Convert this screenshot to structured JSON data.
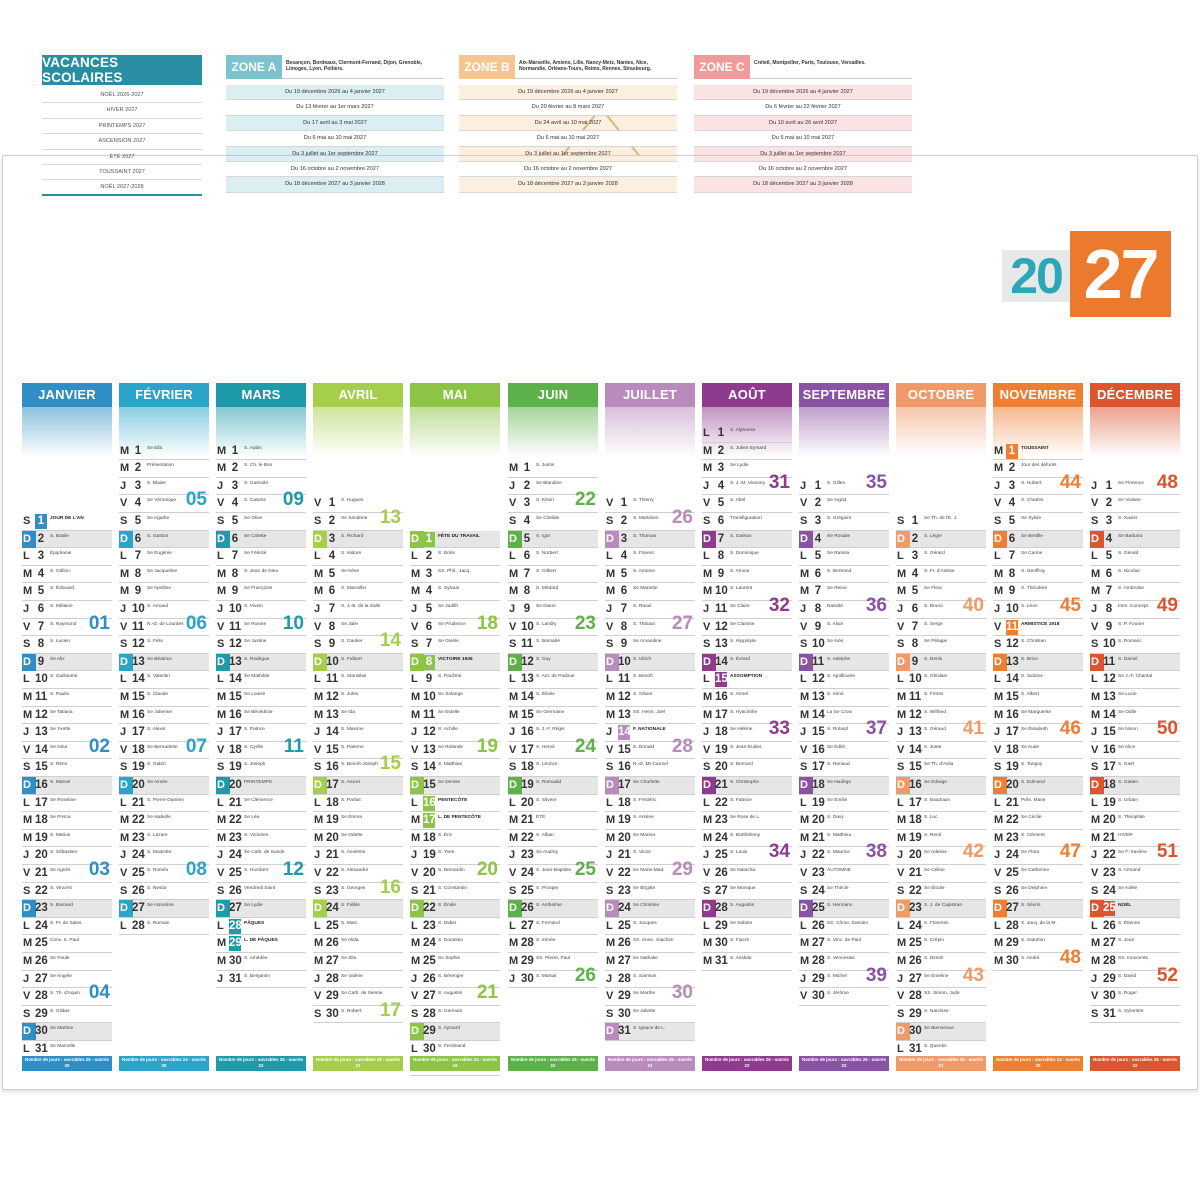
{
  "vacances": {
    "title": "VACANCES SCOLAIRES",
    "periods": [
      "NOËL 2026-2027",
      "HIVER 2027",
      "PRINTEMPS 2027",
      "ASCENSION 2027",
      "ÉTÉ 2027",
      "TOUSSAINT 2027",
      "NOËL 2027-2028"
    ],
    "zones": [
      {
        "name": "ZONE A",
        "color": "#7cc3cf",
        "cities": "Besançon, Bordeaux, Clermont-Ferrand, Dijon, Grenoble, Limoges, Lyon, Poitiers.",
        "rows": [
          "Du 19 décembre 2026 au 4 janvier 2027",
          "Du 13 février au 1er mars 2027",
          "Du 17 avril au 3 mai 2027",
          "Du 6 mai au 10 mai 2027",
          "Du 3 juillet au 1er septembre 2027",
          "Du 16 octobre au 2 novembre 2027",
          "Du 18 décembre 2027 au 3 janvier 2028"
        ]
      },
      {
        "name": "ZONE B",
        "color": "#f7c58f",
        "cities": "Aix-Marseille, Amiens, Lille, Nancy-Metz, Nantes, Nice, Normandie, Orléans-Tours, Reims, Rennes, Strasbourg.",
        "rows": [
          "Du 19 décembre 2026 au 4 janvier 2027",
          "Du 20 février au 8 mars 2027",
          "Du 24 avril au 10 mai 2027",
          "Du 6 mai au 10 mai 2027",
          "Du 3 juillet au 1er septembre 2027",
          "Du 16 octobre au 2 novembre 2027",
          "Du 18 décembre 2027 au 3 janvier 2028"
        ]
      },
      {
        "name": "ZONE C",
        "color": "#f09a9a",
        "cities": "Créteil, Montpellier, Paris, Toulouse, Versailles.",
        "rows": [
          "Du 19 décembre 2026 au 4 janvier 2027",
          "Du 6 février au 22 février 2027",
          "Du 10 avril au 26 avril 2027",
          "Du 6 mai au 10 mai 2027",
          "Du 3 juillet au 1er septembre 2027",
          "Du 16 octobre au 2 novembre 2027",
          "Du 18 décembre 2027 au 3 janvier 2028"
        ]
      }
    ]
  },
  "year": {
    "part1": "20",
    "part2": "27"
  },
  "months": [
    {
      "name": "JANVIER",
      "color": "#2f8fc4",
      "startDay": 5,
      "ndays": 31,
      "footer": "Nombre de jours : ouvrables 25 - ouvrés 20",
      "weeks": [
        [
          "01",
          7
        ],
        [
          "02",
          14
        ],
        [
          "03",
          21
        ],
        [
          "04",
          28
        ]
      ],
      "saints": [
        "JOUR DE L'AN",
        "S. Basile",
        "Épiphanie",
        "S. Odilon",
        "S. Édouard",
        "S. Mélaine",
        "S. Raymond",
        "S. Lucien",
        "Se Alix",
        "S. Guillaume",
        "S. Paulin",
        "Se Tatiana",
        "Se Yvette",
        "Se Nina",
        "S. Rémi",
        "S. Marcel",
        "Se Roseline",
        "Se Prisca",
        "S. Marius",
        "S. Sébastien",
        "Se Agnès",
        "S. Vincent",
        "S. Barnard",
        "S. Fr. de Sales",
        "Conv. S. Paul",
        "Se Paule",
        "Se Angèle",
        "S. Th. d'Aquin",
        "S. Gildas",
        "Se Martine",
        "Se Marcelle"
      ]
    },
    {
      "name": "FÉVRIER",
      "color": "#2aa4c8",
      "startDay": 1,
      "ndays": 28,
      "footer": "Nombre de jours : ouvrables 24 - ouvrés 20",
      "weeks": [
        [
          "05",
          4
        ],
        [
          "06",
          11
        ],
        [
          "07",
          18
        ],
        [
          "08",
          25
        ]
      ],
      "saints": [
        "Se Ella",
        "Présentation",
        "S. Blaise",
        "Se Véronique",
        "Se Agathe",
        "S. Gaston",
        "Se Eugénie",
        "Se Jacqueline",
        "Se Apolline",
        "S. Arnaud",
        "N.-D. de Lourdes",
        "S. Félix",
        "Se Béatrice",
        "S. Valentin",
        "S. Claude",
        "Se Julienne",
        "S. Alexis",
        "Se Bernadette",
        "S. Gabin",
        "Se Aimée",
        "S. Pierre-Damien",
        "Se Isabelle",
        "S. Lazare",
        "S. Modeste",
        "S. Roméo",
        "S. Nestor",
        "Se Honorine",
        "S. Romain"
      ]
    },
    {
      "name": "MARS",
      "color": "#1e9aa8",
      "startDay": 1,
      "ndays": 31,
      "footer": "Nombre de jours : ouvrables 26 - ouvrés 22",
      "weeks": [
        [
          "09",
          4
        ],
        [
          "10",
          11
        ],
        [
          "11",
          18
        ],
        [
          "12",
          25
        ]
      ],
      "saints": [
        "S. Aubin",
        "S. Ch. le Bon",
        "S. Guénolé",
        "S. Casimir",
        "Se Olive",
        "Se Colette",
        "Se Félicité",
        "S. Jean de Dieu",
        "Se Françoise",
        "S. Vivien",
        "Se Rosine",
        "Se Justine",
        "S. Rodrigue",
        "Se Mathilde",
        "Se Louise",
        "Se Bénédicte",
        "S. Patrice",
        "S. Cyrille",
        "S. Joseph",
        "PRINTEMPS",
        "Se Clémence",
        "Se Léa",
        "S. Victorien",
        "Se Cath. de Suède",
        "S. Humbert",
        "Vendredi Saint",
        "Se Lydie",
        "PÂQUES",
        "L. DE PÂQUES",
        "S. Amédée",
        "S. Benjamin"
      ]
    },
    {
      "name": "AVRIL",
      "color": "#a5cf4a",
      "startDay": 4,
      "ndays": 30,
      "footer": "Nombre de jours : ouvrables 25 - ouvrés 21",
      "weeks": [
        [
          "13",
          2
        ],
        [
          "14",
          9
        ],
        [
          "15",
          16
        ],
        [
          "16",
          23
        ],
        [
          "17",
          30
        ]
      ],
      "saints": [
        "S. Hugues",
        "Se Sandrine",
        "S. Richard",
        "S. Isidore",
        "Se Irène",
        "S. Marcellin",
        "S. J.-B. de la Salle",
        "Se Julie",
        "S. Gautier",
        "S. Fulbert",
        "S. Stanislas",
        "S. Jules",
        "Se Ida",
        "S. Maxime",
        "S. Paterne",
        "S. Benoît-Joseph",
        "S. Anicet",
        "S. Parfait",
        "Se Emma",
        "Se Odette",
        "S. Anselme",
        "S. Alexandre",
        "S. Georges",
        "S. Fidèle",
        "S. Marc",
        "Se Alida",
        "Se Zita",
        "Se Valérie",
        "Se Cath. de Sienne",
        "S. Robert"
      ]
    },
    {
      "name": "MAI",
      "color": "#8cc446",
      "startDay": 6,
      "ndays": 31,
      "footer": "Nombre de jours : ouvrables 24 - ouvrés 19",
      "weeks": [
        [
          "18",
          6
        ],
        [
          "19",
          13
        ],
        [
          "20",
          20
        ],
        [
          "21",
          27
        ]
      ],
      "saints": [
        "FÊTE DU TRAVAIL",
        "S. Boris",
        "SS. Phil., Jacq.",
        "S. Sylvain",
        "Se Judith",
        "Se Prudence",
        "Se Gisèle",
        "VICTOIRE 1945",
        "S. Pacôme",
        "Se Solange",
        "Se Estelle",
        "S. Achille",
        "Se Rolande",
        "S. Matthias",
        "Se Denise",
        "PENTECÔTE",
        "L. DE PENTECÔTE",
        "S. Éric",
        "S. Yves",
        "S. Bernardin",
        "S. Constantin",
        "S. Émile",
        "S. Didier",
        "S. Donatien",
        "Se Sophie",
        "S. Bérenger",
        "S. Augustin",
        "S. Germain",
        "S. Aymard",
        "S. Ferdinand",
        "Visitation"
      ]
    },
    {
      "name": "JUIN",
      "color": "#5db04a",
      "startDay": 2,
      "ndays": 30,
      "footer": "Nombre de jours : ouvrables 26 - ouvrés 22",
      "weeks": [
        [
          "22",
          3
        ],
        [
          "23",
          10
        ],
        [
          "24",
          17
        ],
        [
          "25",
          24
        ],
        [
          "26",
          30
        ]
      ],
      "saints": [
        "S. Justin",
        "Se Blandine",
        "S. Kévin",
        "Se Clotilde",
        "S. Igor",
        "S. Norbert",
        "S. Gilbert",
        "S. Médard",
        "Se Diane",
        "S. Landry",
        "S. Barnabé",
        "S. Guy",
        "S. Ant. de Padoue",
        "S. Élisée",
        "Se Germaine",
        "S. J.-F. Régis",
        "S. Hervé",
        "S. Léonce",
        "S. Romuald",
        "S. Silvère",
        "ÉTÉ",
        "S. Alban",
        "Se Audrey",
        "S. Jean-Baptiste",
        "S. Prosper",
        "S. Anthelme",
        "S. Fernand",
        "S. Irénée",
        "SS. Pierre, Paul",
        "S. Martial"
      ]
    },
    {
      "name": "JUILLET",
      "color": "#b98bbd",
      "startDay": 4,
      "ndays": 31,
      "footer": "Nombre de jours : ouvrables 26 - ouvrés 21",
      "weeks": [
        [
          "26",
          2
        ],
        [
          "27",
          8
        ],
        [
          "28",
          15
        ],
        [
          "29",
          22
        ],
        [
          "30",
          29
        ]
      ],
      "saints": [
        "S. Thierry",
        "S. Martinien",
        "S. Thomas",
        "S. Florent",
        "S. Antoine",
        "Se Mariette",
        "S. Raoul",
        "S. Thibaut",
        "Se Amandine",
        "S. Ulrich",
        "S. Benoît",
        "S. Olivier",
        "SS. Henri, Joël",
        "F. NATIONALE",
        "S. Donald",
        "N.-D. Mt-Carmel",
        "Se Charlotte",
        "S. Frédéric",
        "S. Arsène",
        "Se Marina",
        "S. Victor",
        "Se Marie-Mad.",
        "Se Brigitte",
        "Se Christine",
        "S. Jacques",
        "SS. Anne, Joachim",
        "Se Nathalie",
        "S. Samson",
        "Se Marthe",
        "Se Juliette",
        "S. Ignace de L."
      ]
    },
    {
      "name": "AOÛT",
      "color": "#8e3b8e",
      "startDay": 0,
      "ndays": 31,
      "footer": "Nombre de jours : ouvrables 26 - ouvrés 22",
      "weeks": [
        [
          "31",
          4
        ],
        [
          "32",
          11
        ],
        [
          "33",
          18
        ],
        [
          "34",
          25
        ]
      ],
      "saints": [
        "S. Alphonse",
        "S. Julien Eymard",
        "Se Lydie",
        "S. J.-M. Vianney",
        "S. Abel",
        "Transfiguration",
        "S. Gaétan",
        "S. Dominique",
        "S. Amour",
        "S. Laurent",
        "Se Claire",
        "Se Clarisse",
        "S. Hippolyte",
        "S. Évrard",
        "ASSOMPTION",
        "S. Armel",
        "S. Hyacinthe",
        "Se Hélène",
        "S. Jean-Eudes",
        "S. Bernard",
        "S. Christophe",
        "S. Fabrice",
        "Se Rose de L.",
        "S. Barthélemy",
        "S. Louis",
        "Se Natacha",
        "Se Monique",
        "S. Augustin",
        "Se Sabine",
        "S. Fiacre",
        "S. Aristide"
      ]
    },
    {
      "name": "SEPTEMBRE",
      "color": "#8a52a3",
      "startDay": 3,
      "ndays": 30,
      "footer": "Nombre de jours : ouvrables 26 - ouvrés 22",
      "weeks": [
        [
          "35",
          1
        ],
        [
          "36",
          8
        ],
        [
          "37",
          15
        ],
        [
          "38",
          22
        ],
        [
          "39",
          29
        ]
      ],
      "saints": [
        "S. Gilles",
        "Se Ingrid",
        "S. Grégoire",
        "Se Rosalie",
        "Se Raïssa",
        "S. Bertrand",
        "Se Reine",
        "Nativité",
        "S. Alain",
        "Se Inès",
        "S. Adelphe",
        "S. Apollinaire",
        "S. Aimé",
        "La Se Croix",
        "S. Roland",
        "Se Édith",
        "S. Renaud",
        "Se Nadège",
        "Se Émilie",
        "S. Davy",
        "S. Matthieu",
        "S. Maurice",
        "AUTOMNE",
        "Se Thècle",
        "S. Hermann",
        "SS. Côme, Damien",
        "S. Vinc. de Paul",
        "S. Venceslas",
        "S. Michel",
        "S. Jérôme"
      ]
    },
    {
      "name": "OCTOBRE",
      "color": "#f09a6a",
      "startDay": 5,
      "ndays": 31,
      "footer": "Nombre de jours : ouvrables 26 - ouvrés 21",
      "weeks": [
        [
          "40",
          6
        ],
        [
          "41",
          13
        ],
        [
          "42",
          20
        ],
        [
          "43",
          27
        ]
      ],
      "saints": [
        "Se Th. de l'E. J.",
        "S. Léger",
        "S. Gérard",
        "S. Fr. d'Assise",
        "Se Fleur",
        "S. Bruno",
        "S. Serge",
        "Se Pélagie",
        "S. Denis",
        "S. Ghislain",
        "S. Firmin",
        "S. Wilfried",
        "S. Géraud",
        "S. Juste",
        "Se Th. d'Avila",
        "Se Edwige",
        "S. Baudouin",
        "S. Luc",
        "S. René",
        "Se Adeline",
        "Se Céline",
        "Se Élodie",
        "S. J. de Capistran",
        "S. Florentin",
        "S. Crépin",
        "S. Dimitri",
        "Se Émeline",
        "SS. Simon, Jude",
        "S. Narcisse",
        "Se Bienvenue",
        "S. Quentin"
      ]
    },
    {
      "name": "NOVEMBRE",
      "color": "#ee7e32",
      "startDay": 1,
      "ndays": 30,
      "footer": "Nombre de jours : ouvrables 24 - ouvrés 20",
      "weeks": [
        [
          "44",
          3
        ],
        [
          "45",
          10
        ],
        [
          "46",
          17
        ],
        [
          "47",
          24
        ],
        [
          "48",
          30
        ]
      ],
      "saints": [
        "TOUSSAINT",
        "Jour des défunts",
        "S. Hubert",
        "S. Charles",
        "Se Sylvie",
        "Se Bertille",
        "Se Carine",
        "S. Geoffroy",
        "S. Théodore",
        "S. Léon",
        "ARMISTICE 1918",
        "S. Christian",
        "S. Brice",
        "S. Sidoine",
        "S. Albert",
        "Se Marguerite",
        "Se Élisabeth",
        "Se Aude",
        "S. Tanguy",
        "S. Edmond",
        "Prés. Marie",
        "Se Cécile",
        "S. Clément",
        "Se Flora",
        "Se Catherine",
        "Se Delphine",
        "S. Sévrin",
        "S. Jacq. de la M.",
        "S. Saturnin",
        "S. André"
      ]
    },
    {
      "name": "DÉCEMBRE",
      "color": "#dc5430",
      "startDay": 3,
      "ndays": 31,
      "footer": "Nombre de jours : ouvrables 26 - ouvrés 22",
      "weeks": [
        [
          "48",
          1
        ],
        [
          "49",
          8
        ],
        [
          "50",
          15
        ],
        [
          "51",
          22
        ],
        [
          "52",
          29
        ]
      ],
      "saints": [
        "Se Florence",
        "Se Viviane",
        "S. Xavier",
        "Se Barbara",
        "S. Gérald",
        "S. Nicolas",
        "S. Ambroise",
        "Imm. Concept.",
        "S. P. Fourier",
        "S. Romaric",
        "S. Daniel",
        "Se J.-F. Chantal",
        "Se Lucie",
        "Se Odile",
        "Se Ninon",
        "Se Alice",
        "S. Gaël",
        "S. Gatien",
        "S. Urbain",
        "S. Théophile",
        "HIVER",
        "Se F.-Xavière",
        "S. Armand",
        "Se Adèle",
        "NOËL",
        "S. Étienne",
        "S. Jean",
        "SS. Innocents",
        "S. David",
        "S. Roger",
        "S. Sylvestre"
      ]
    }
  ],
  "holidays": {
    "JANVIER": [
      1
    ],
    "MARS": [
      28,
      29
    ],
    "MAI": [
      1,
      8,
      16,
      17
    ],
    "JUILLET": [
      14
    ],
    "AOÛT": [
      15
    ],
    "NOVEMBRE": [
      1,
      11
    ],
    "DÉCEMBRE": [
      25
    ]
  },
  "dayLetters": [
    "L",
    "M",
    "M",
    "J",
    "V",
    "S",
    "D"
  ]
}
